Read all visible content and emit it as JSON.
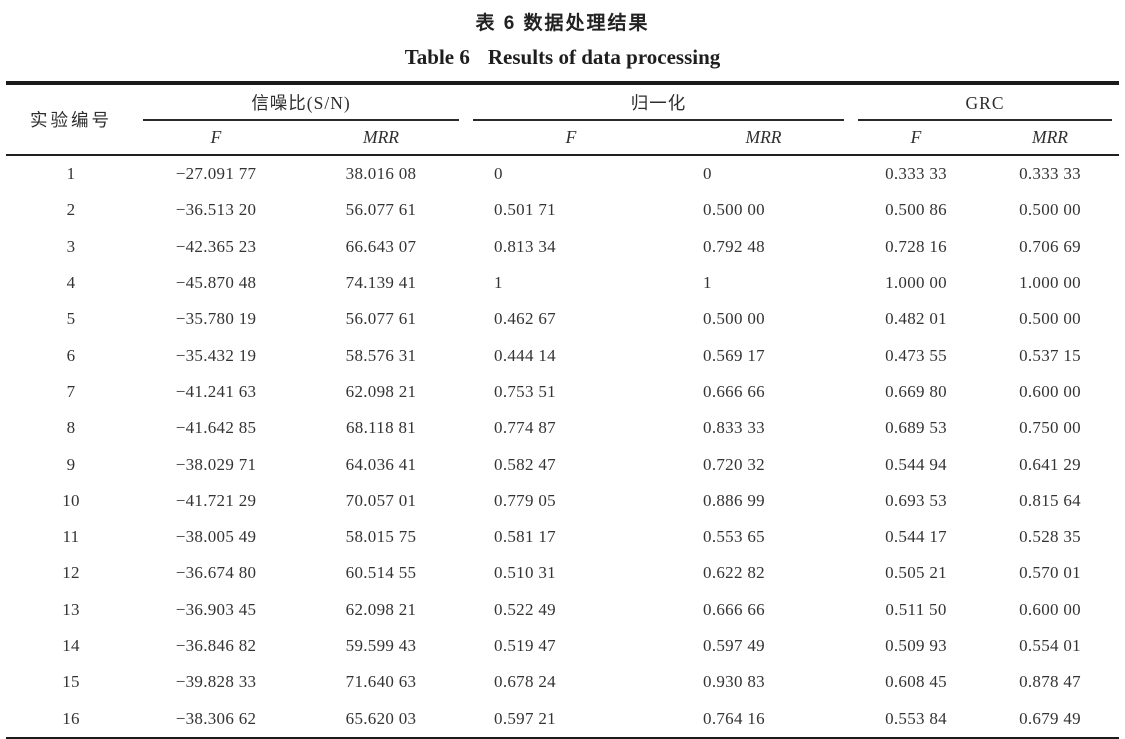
{
  "titles": {
    "zh": "表 6 数据处理结果",
    "en_label": "Table 6",
    "en_text": "Results of data processing"
  },
  "table": {
    "corner_header": "实验编号",
    "groups": [
      {
        "label": "信噪比(S/N)"
      },
      {
        "label": "归一化"
      },
      {
        "label": "GRC"
      }
    ],
    "sub_headers": [
      "F",
      "MRR"
    ],
    "columns": [
      "实验编号",
      "信噪比(S/N) F",
      "信噪比(S/N) MRR",
      "归一化 F",
      "归一化 MRR",
      "GRC F",
      "GRC MRR"
    ],
    "rows": [
      [
        "1",
        "−27.091 77",
        "38.016 08",
        "0",
        "0",
        "0.333 33",
        "0.333 33"
      ],
      [
        "2",
        "−36.513 20",
        "56.077 61",
        "0.501 71",
        "0.500 00",
        "0.500 86",
        "0.500 00"
      ],
      [
        "3",
        "−42.365 23",
        "66.643 07",
        "0.813 34",
        "0.792 48",
        "0.728 16",
        "0.706 69"
      ],
      [
        "4",
        "−45.870 48",
        "74.139 41",
        "1",
        "1",
        "1.000 00",
        "1.000 00"
      ],
      [
        "5",
        "−35.780 19",
        "56.077 61",
        "0.462 67",
        "0.500 00",
        "0.482 01",
        "0.500 00"
      ],
      [
        "6",
        "−35.432 19",
        "58.576 31",
        "0.444 14",
        "0.569 17",
        "0.473 55",
        "0.537 15"
      ],
      [
        "7",
        "−41.241 63",
        "62.098 21",
        "0.753 51",
        "0.666 66",
        "0.669 80",
        "0.600 00"
      ],
      [
        "8",
        "−41.642 85",
        "68.118 81",
        "0.774 87",
        "0.833 33",
        "0.689 53",
        "0.750 00"
      ],
      [
        "9",
        "−38.029 71",
        "64.036 41",
        "0.582 47",
        "0.720 32",
        "0.544 94",
        "0.641 29"
      ],
      [
        "10",
        "−41.721 29",
        "70.057 01",
        "0.779 05",
        "0.886 99",
        "0.693 53",
        "0.815 64"
      ],
      [
        "11",
        "−38.005 49",
        "58.015 75",
        "0.581 17",
        "0.553 65",
        "0.544 17",
        "0.528 35"
      ],
      [
        "12",
        "−36.674 80",
        "60.514 55",
        "0.510 31",
        "0.622 82",
        "0.505 21",
        "0.570 01"
      ],
      [
        "13",
        "−36.903 45",
        "62.098 21",
        "0.522 49",
        "0.666 66",
        "0.511 50",
        "0.600 00"
      ],
      [
        "14",
        "−36.846 82",
        "59.599 43",
        "0.519 47",
        "0.597 49",
        "0.509 93",
        "0.554 01"
      ],
      [
        "15",
        "−39.828 33",
        "71.640 63",
        "0.678 24",
        "0.930 83",
        "0.608 45",
        "0.878 47"
      ],
      [
        "16",
        "−38.306 62",
        "65.620 03",
        "0.597 21",
        "0.764 16",
        "0.553 84",
        "0.679 49"
      ]
    ]
  }
}
